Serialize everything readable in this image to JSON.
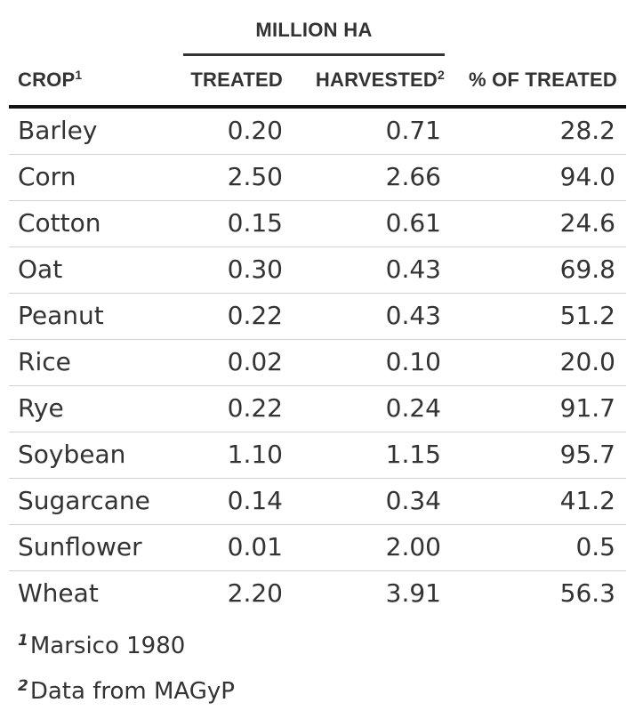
{
  "table": {
    "spanner": "MILLION HA",
    "columns": {
      "crop": "CROP",
      "crop_mark": "1",
      "treated": "TREATED",
      "harvested": "HARVESTED",
      "harvested_mark": "2",
      "pct": "% OF TREATED"
    },
    "rows": [
      {
        "crop": "Barley",
        "treated": "0.20",
        "harvested": "0.71",
        "pct": "28.2"
      },
      {
        "crop": "Corn",
        "treated": "2.50",
        "harvested": "2.66",
        "pct": "94.0"
      },
      {
        "crop": "Cotton",
        "treated": "0.15",
        "harvested": "0.61",
        "pct": "24.6"
      },
      {
        "crop": "Oat",
        "treated": "0.30",
        "harvested": "0.43",
        "pct": "69.8"
      },
      {
        "crop": "Peanut",
        "treated": "0.22",
        "harvested": "0.43",
        "pct": "51.2"
      },
      {
        "crop": "Rice",
        "treated": "0.02",
        "harvested": "0.10",
        "pct": "20.0"
      },
      {
        "crop": "Rye",
        "treated": "0.22",
        "harvested": "0.24",
        "pct": "91.7"
      },
      {
        "crop": "Soybean",
        "treated": "1.10",
        "harvested": "1.15",
        "pct": "95.7"
      },
      {
        "crop": "Sugarcane",
        "treated": "0.14",
        "harvested": "0.34",
        "pct": "41.2"
      },
      {
        "crop": "Sunflower",
        "treated": "0.01",
        "harvested": "2.00",
        "pct": "0.5"
      },
      {
        "crop": "Wheat",
        "treated": "2.20",
        "harvested": "3.91",
        "pct": "56.3"
      }
    ],
    "footnotes": [
      {
        "mark": "1",
        "text": "Marsico 1980"
      },
      {
        "mark": "2",
        "text": "Data from MAGyP"
      }
    ]
  }
}
